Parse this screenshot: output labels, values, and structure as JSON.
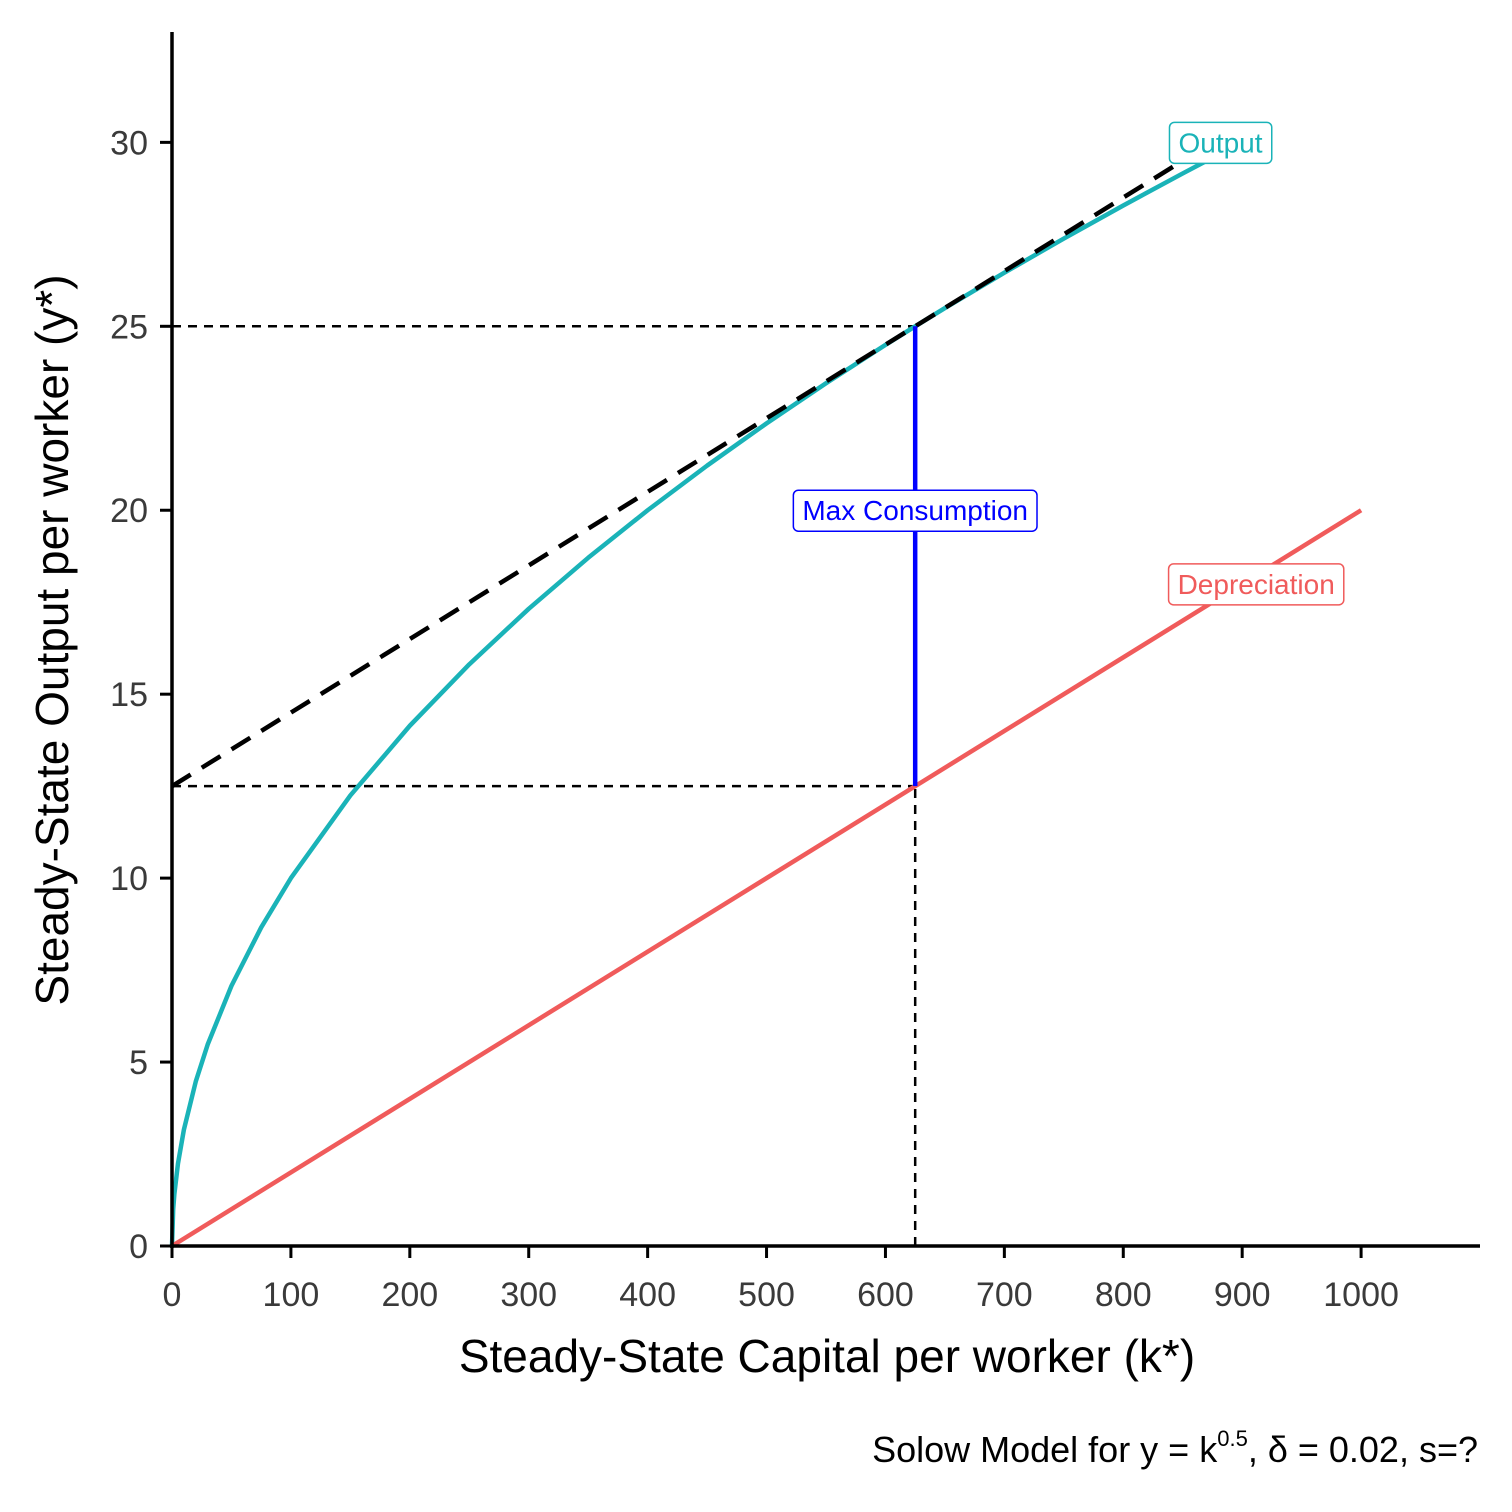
{
  "chart_data": {
    "type": "line",
    "title": "",
    "xlabel": "Steady-State Capital per worker (k*)",
    "ylabel": "Steady-State Output per worker (y*)",
    "caption": {
      "prefix": "Solow Model for y = k",
      "exponent": "0.5",
      "suffix": ", δ = 0.02, s=?"
    },
    "xlim": [
      0,
      1100
    ],
    "ylim": [
      0,
      33
    ],
    "x_ticks": [
      0,
      100,
      200,
      300,
      400,
      500,
      600,
      700,
      800,
      900,
      1000
    ],
    "x_tick_labels": [
      "0",
      "100",
      "200",
      "300",
      "400",
      "500",
      "600",
      "700",
      "800",
      "900",
      "1000"
    ],
    "y_ticks": [
      0,
      5,
      10,
      15,
      20,
      25,
      30
    ],
    "y_tick_labels": [
      "0",
      "5",
      "10",
      "15",
      "20",
      "25",
      "30"
    ],
    "grid": false,
    "series": [
      {
        "name": "Output",
        "function": "y = k^0.5",
        "color": "#1ab3b8",
        "x": [
          0,
          1,
          2,
          5,
          10,
          20,
          30,
          50,
          75,
          100,
          150,
          200,
          250,
          300,
          350,
          400,
          450,
          500,
          550,
          600,
          625,
          650,
          700,
          750,
          800,
          850,
          870
        ],
        "y": [
          0,
          1,
          1.414,
          2.236,
          3.162,
          4.472,
          5.477,
          7.071,
          8.66,
          10,
          12.247,
          14.142,
          15.811,
          17.321,
          18.708,
          20,
          21.213,
          22.361,
          23.452,
          24.495,
          25,
          25.495,
          26.458,
          27.386,
          28.284,
          29.155,
          29.496
        ],
        "end_label": "Output",
        "end_label_at": [
          870,
          30
        ]
      },
      {
        "name": "Depreciation",
        "function": "y = 0.02k",
        "color": "#f05b5b",
        "x": [
          0,
          1000
        ],
        "y": [
          0,
          20
        ],
        "end_label": "Depreciation",
        "end_label_at": [
          900,
          18
        ]
      }
    ],
    "tangent_line": {
      "color": "#000000",
      "style": "dashed",
      "x": [
        0,
        870
      ],
      "y": [
        12.5,
        29.9
      ]
    },
    "reference_lines": [
      {
        "from": [
          0,
          25
        ],
        "to": [
          625,
          25
        ]
      },
      {
        "from": [
          0,
          12.5
        ],
        "to": [
          625,
          12.5
        ]
      },
      {
        "from": [
          625,
          0
        ],
        "to": [
          625,
          12.5
        ]
      }
    ],
    "max_consumption": {
      "label": "Max Consumption",
      "color": "#0000ff",
      "x": 625,
      "y_from": 12.5,
      "y_to": 25,
      "label_at": [
        625,
        20
      ]
    }
  }
}
